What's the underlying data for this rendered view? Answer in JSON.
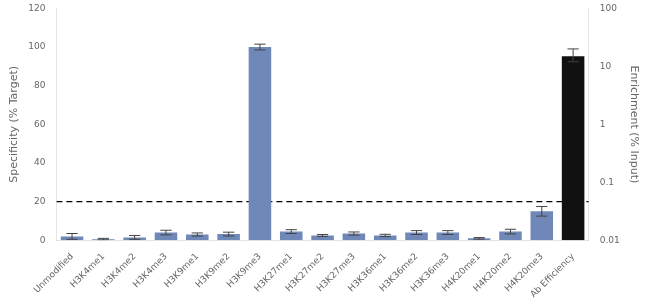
{
  "chart_data": {
    "type": "bar",
    "categories": [
      "Unmodified",
      "H3K4me1",
      "H3K4me2",
      "H3K4me3",
      "H3K9me1",
      "H3K9me2",
      "H3K9me3",
      "H3K27me1",
      "H3K27me2",
      "H3K27me3",
      "H3K36me1",
      "H3K36me2",
      "H3K36me3",
      "H4K20me1",
      "H4K20me2",
      "H4K20me3",
      "Ab Efficiency"
    ],
    "series": [
      {
        "color": "#7088b8",
        "values": [
          2.0,
          0.6,
          1.5,
          4.0,
          3.0,
          3.2,
          100.0,
          4.5,
          2.5,
          3.5,
          2.5,
          4.0,
          4.0,
          1.0,
          4.5,
          15.0,
          null
        ],
        "errors": [
          1.5,
          0.4,
          1.0,
          1.2,
          0.8,
          1.0,
          1.5,
          1.0,
          0.5,
          0.8,
          0.6,
          1.0,
          1.0,
          0.4,
          1.2,
          2.5,
          null
        ]
      },
      {
        "color": "#111111",
        "axis": "y2",
        "values": [
          null,
          null,
          null,
          null,
          null,
          null,
          null,
          null,
          null,
          null,
          null,
          null,
          null,
          null,
          null,
          null,
          15.0
        ],
        "errors_low": [
          null,
          null,
          null,
          null,
          null,
          null,
          null,
          null,
          null,
          null,
          null,
          null,
          null,
          null,
          null,
          null,
          3.0
        ],
        "errors_high": [
          null,
          null,
          null,
          null,
          null,
          null,
          null,
          null,
          null,
          null,
          null,
          null,
          null,
          null,
          null,
          null,
          5.0
        ]
      }
    ],
    "reference_lines": [
      {
        "y": 20,
        "color": "#000000",
        "line_style": "dashed"
      }
    ],
    "ylabel": "Specificity (% Target)",
    "y2label": "Enrichment (% Input)",
    "ylim": [
      0,
      120
    ],
    "yticks": [
      0,
      20,
      40,
      60,
      80,
      100,
      120
    ],
    "y2lim": [
      0.01,
      100
    ],
    "y2ticks": [
      0.01,
      0.1,
      1,
      10,
      100
    ],
    "log": "y2",
    "grid": false
  }
}
